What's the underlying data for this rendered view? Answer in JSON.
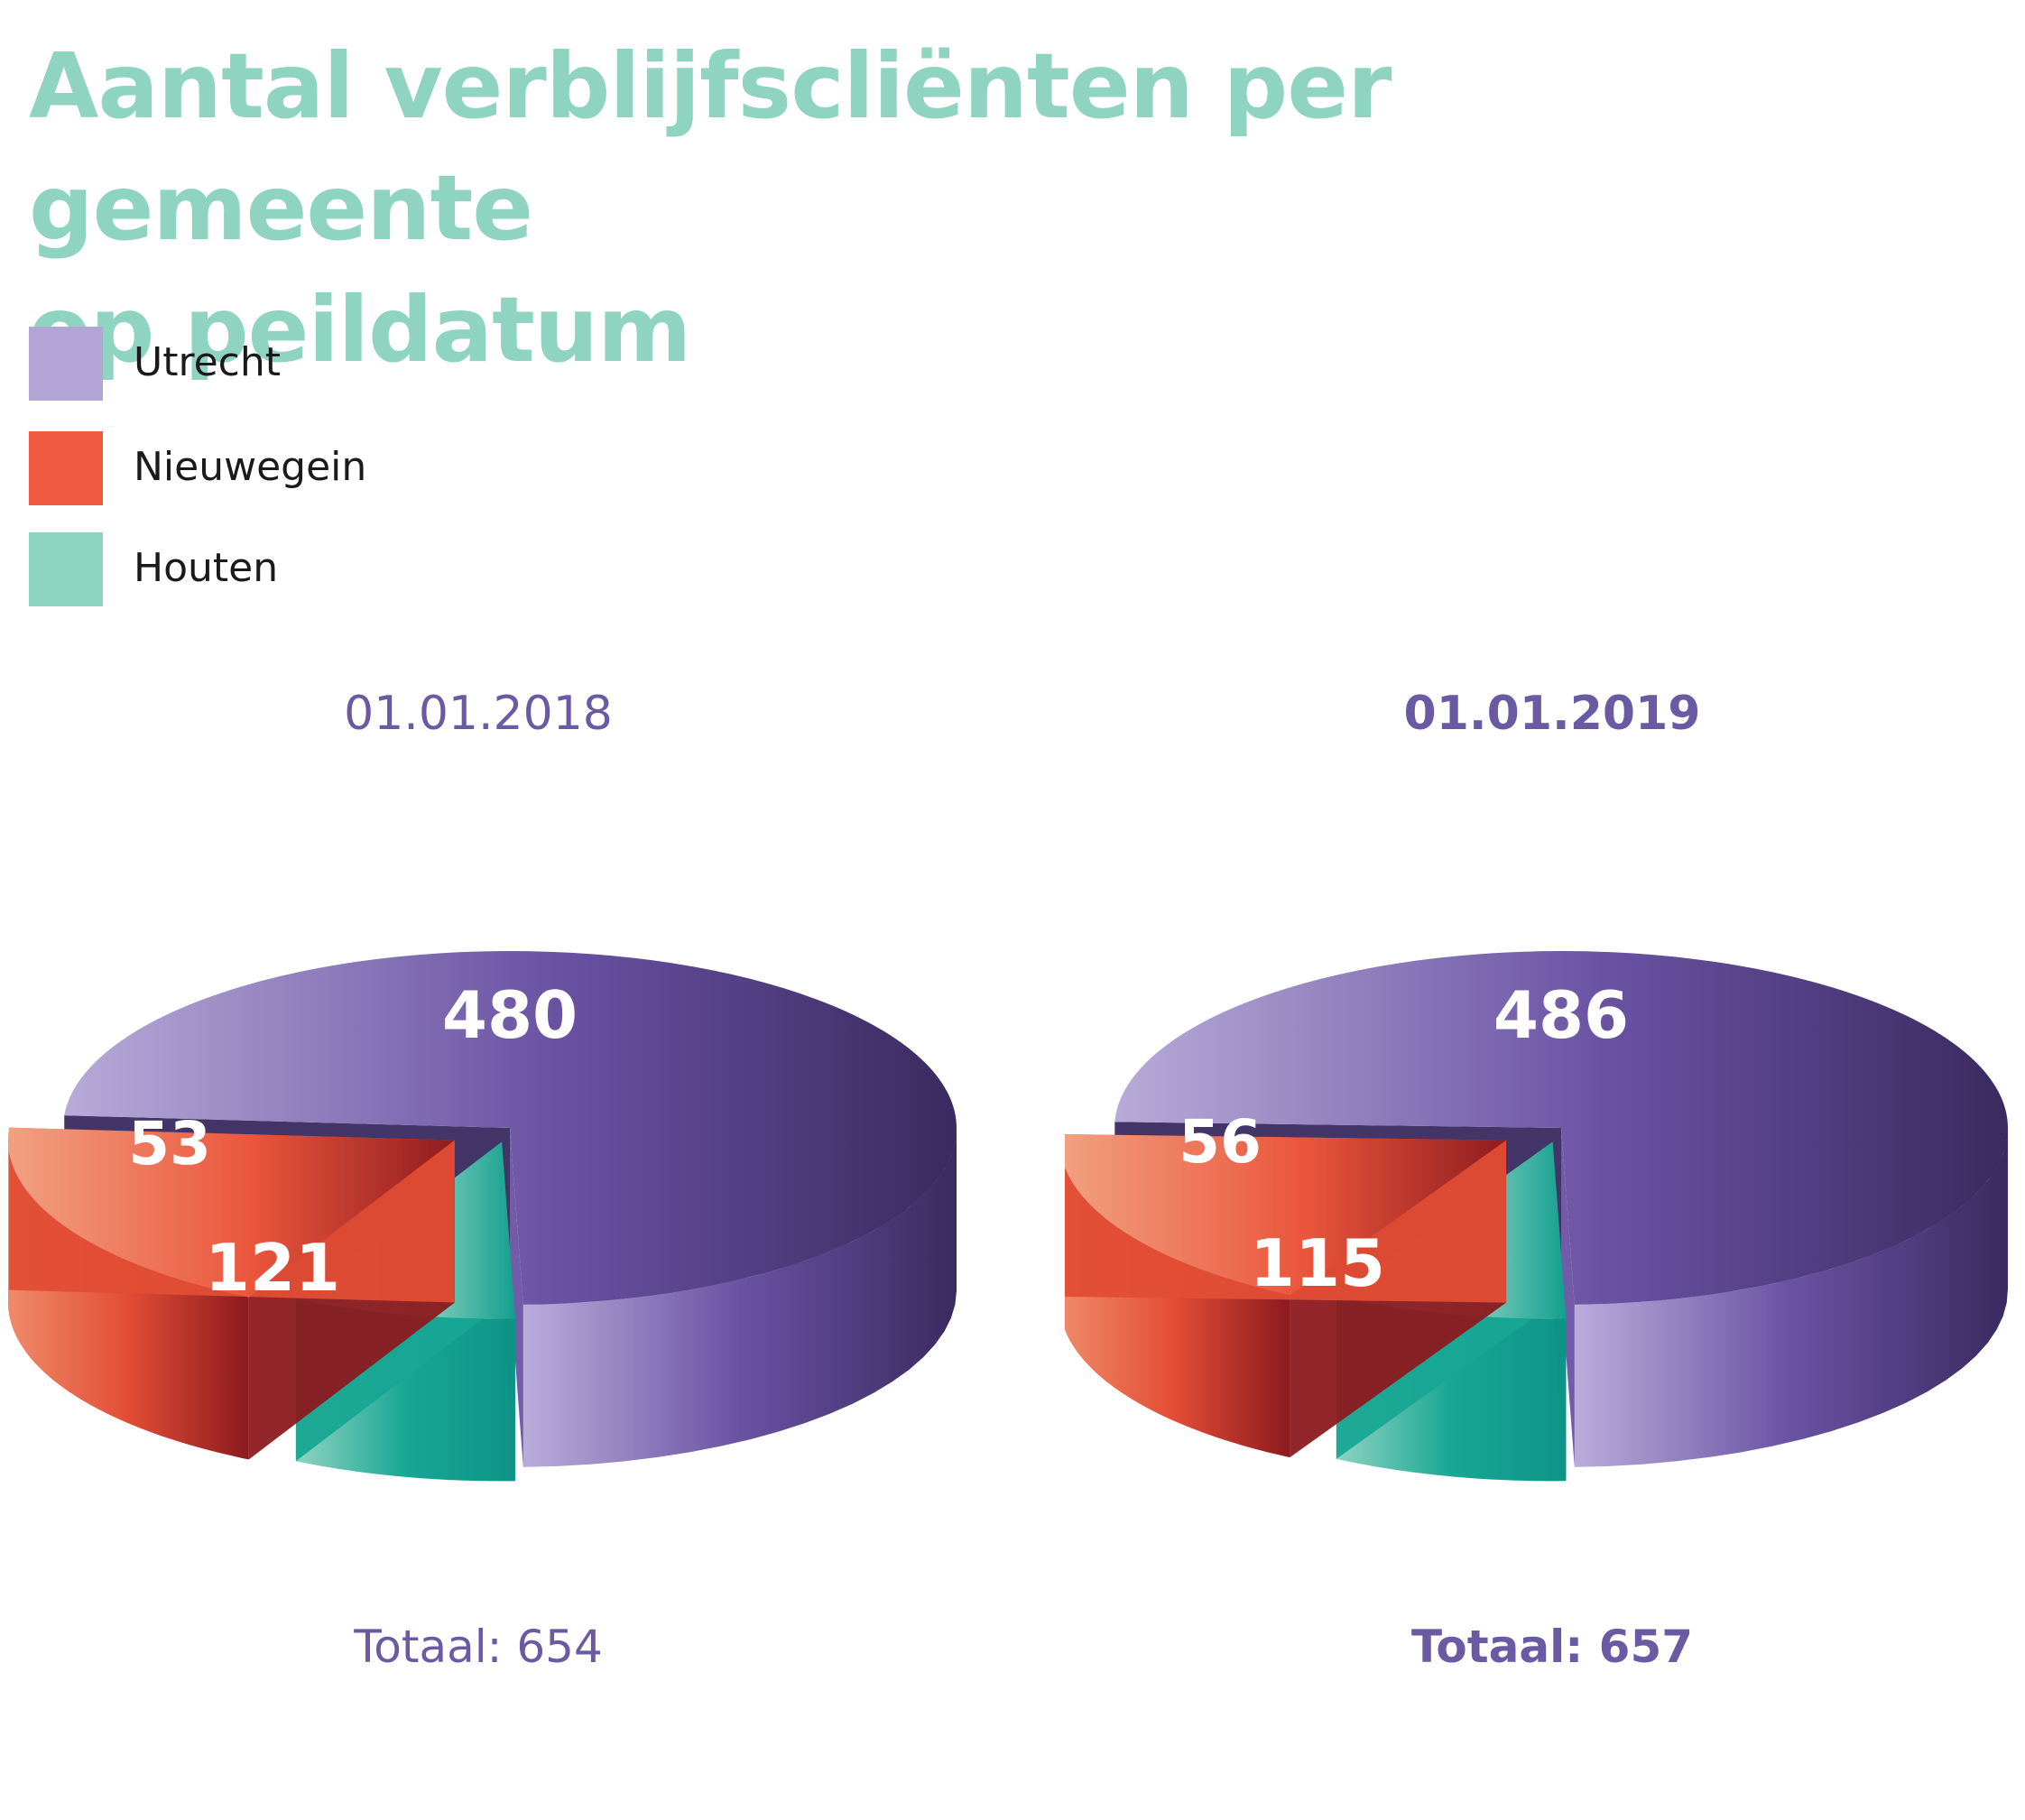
{
  "title": {
    "line1": "Aantal verblijfscliënten per gemeente",
    "line2": "op peildatum"
  },
  "colors": {
    "Utrecht": "#b3a6d6",
    "Nieuwegein": "#ef5a40",
    "Houten": "#8fd3c1",
    "title": "#8fd3c1",
    "date": "#6a5aa3"
  },
  "legend": [
    {
      "label": "Utrecht"
    },
    {
      "label": "Nieuwegein"
    },
    {
      "label": "Houten"
    }
  ],
  "chart_data": [
    {
      "type": "pie",
      "title": "01.01.2018",
      "style": "3d exploded",
      "categories": [
        "Utrecht",
        "Nieuwegein",
        "Houten"
      ],
      "values": [
        480,
        121,
        53
      ],
      "total_label": "Totaal: 654"
    },
    {
      "type": "pie",
      "title": "01.01.2019",
      "style": "3d exploded",
      "categories": [
        "Utrecht",
        "Nieuwegein",
        "Houten"
      ],
      "values": [
        486,
        115,
        56
      ],
      "total_label": "Totaal: 657"
    }
  ]
}
